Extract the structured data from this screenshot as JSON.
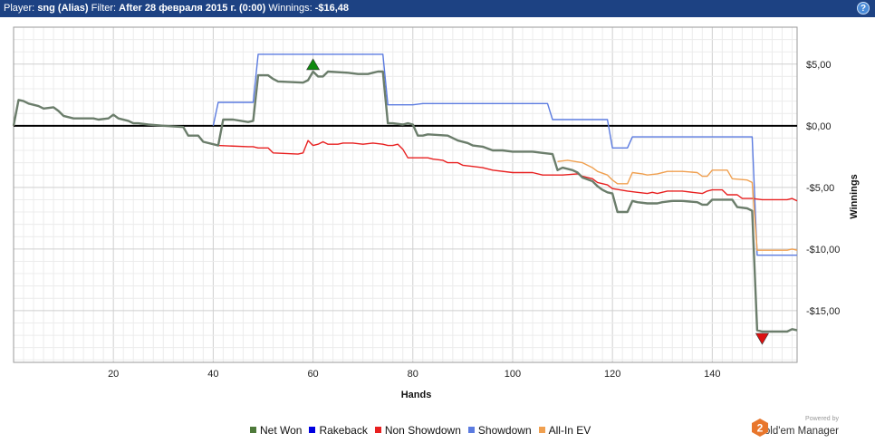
{
  "header": {
    "player_label": "Player:",
    "player_value": "sng (Alias)",
    "filter_label": "Filter:",
    "filter_value": "After 28 февраля 2015 г. (0:00)",
    "winnings_label": "Winnings:",
    "winnings_value": "-$16,48",
    "help_glyph": "?"
  },
  "chart_data": {
    "type": "line",
    "xlabel": "Hands",
    "ylabel": "Winnings",
    "xlim": [
      0,
      157
    ],
    "ylim": [
      -19.2,
      8.0
    ],
    "x_ticks": [
      20,
      40,
      60,
      80,
      100,
      120,
      140
    ],
    "y_ticks": [
      {
        "value": 5,
        "label": "$5,00"
      },
      {
        "value": 0,
        "label": "$0,00"
      },
      {
        "value": -5,
        "label": "-$5,00"
      },
      {
        "value": -10,
        "label": "-$10,00"
      },
      {
        "value": -15,
        "label": "-$15,00"
      }
    ],
    "grid": true,
    "legend_position": "bottom",
    "series": [
      {
        "name": "Net Won",
        "color": "#6b7d6b",
        "points": [
          [
            0,
            0
          ],
          [
            1,
            2.1
          ],
          [
            2,
            2.0
          ],
          [
            3,
            1.8
          ],
          [
            5,
            1.6
          ],
          [
            6,
            1.4
          ],
          [
            8,
            1.5
          ],
          [
            9,
            1.2
          ],
          [
            10,
            0.8
          ],
          [
            12,
            0.6
          ],
          [
            16,
            0.6
          ],
          [
            17,
            0.5
          ],
          [
            19,
            0.6
          ],
          [
            20,
            0.9
          ],
          [
            21,
            0.6
          ],
          [
            23,
            0.4
          ],
          [
            24,
            0.2
          ],
          [
            25,
            0.2
          ],
          [
            27,
            0.1
          ],
          [
            30,
            0.0
          ],
          [
            34,
            -0.1
          ],
          [
            35,
            -0.8
          ],
          [
            37,
            -0.8
          ],
          [
            38,
            -1.3
          ],
          [
            40,
            -1.5
          ],
          [
            41,
            -1.6
          ],
          [
            42,
            0.5
          ],
          [
            44,
            0.5
          ],
          [
            47,
            0.3
          ],
          [
            48,
            0.4
          ],
          [
            49,
            4.1
          ],
          [
            51,
            4.1
          ],
          [
            52,
            3.8
          ],
          [
            53,
            3.6
          ],
          [
            58,
            3.5
          ],
          [
            59,
            3.7
          ],
          [
            60,
            4.4
          ],
          [
            61,
            4.0
          ],
          [
            62,
            4.0
          ],
          [
            63,
            4.4
          ],
          [
            67,
            4.3
          ],
          [
            69,
            4.2
          ],
          [
            71,
            4.2
          ],
          [
            72,
            4.3
          ],
          [
            73,
            4.4
          ],
          [
            74,
            4.4
          ],
          [
            75,
            0.2
          ],
          [
            76,
            0.2
          ],
          [
            78,
            0.1
          ],
          [
            79,
            0.2
          ],
          [
            80,
            0.1
          ],
          [
            81,
            -0.8
          ],
          [
            82,
            -0.8
          ],
          [
            83,
            -0.7
          ],
          [
            87,
            -0.8
          ],
          [
            89,
            -1.2
          ],
          [
            91,
            -1.4
          ],
          [
            92,
            -1.6
          ],
          [
            94,
            -1.7
          ],
          [
            96,
            -2.0
          ],
          [
            98,
            -2.0
          ],
          [
            100,
            -2.1
          ],
          [
            102,
            -2.1
          ],
          [
            104,
            -2.1
          ],
          [
            106,
            -2.2
          ],
          [
            108,
            -2.3
          ],
          [
            109,
            -3.6
          ],
          [
            110,
            -3.4
          ],
          [
            111,
            -3.5
          ],
          [
            112,
            -3.6
          ],
          [
            113,
            -3.8
          ],
          [
            114,
            -4.2
          ],
          [
            116,
            -4.5
          ],
          [
            117,
            -4.9
          ],
          [
            118,
            -5.2
          ],
          [
            119,
            -5.4
          ],
          [
            120,
            -5.5
          ],
          [
            121,
            -7.0
          ],
          [
            123,
            -7.0
          ],
          [
            124,
            -6.1
          ],
          [
            125,
            -6.2
          ],
          [
            127,
            -6.3
          ],
          [
            129,
            -6.3
          ],
          [
            130,
            -6.2
          ],
          [
            132,
            -6.1
          ],
          [
            134,
            -6.1
          ],
          [
            137,
            -6.2
          ],
          [
            138,
            -6.4
          ],
          [
            139,
            -6.4
          ],
          [
            140,
            -6.0
          ],
          [
            141,
            -6.0
          ],
          [
            144,
            -6.0
          ],
          [
            145,
            -6.6
          ],
          [
            147,
            -6.7
          ],
          [
            148,
            -6.9
          ],
          [
            149,
            -16.6
          ],
          [
            150,
            -16.7
          ],
          [
            155,
            -16.7
          ],
          [
            156,
            -16.5
          ],
          [
            157,
            -16.6
          ]
        ]
      },
      {
        "name": "Rakeback",
        "color": "#0000e0",
        "points": []
      },
      {
        "name": "Non Showdown",
        "color": "#e82020",
        "points": [
          [
            0,
            0
          ],
          [
            1,
            2.1
          ],
          [
            2,
            2.0
          ],
          [
            3,
            1.8
          ],
          [
            5,
            1.6
          ],
          [
            6,
            1.4
          ],
          [
            8,
            1.5
          ],
          [
            9,
            1.2
          ],
          [
            10,
            0.8
          ],
          [
            12,
            0.6
          ],
          [
            16,
            0.6
          ],
          [
            17,
            0.5
          ],
          [
            19,
            0.6
          ],
          [
            20,
            0.9
          ],
          [
            21,
            0.6
          ],
          [
            23,
            0.4
          ],
          [
            24,
            0.2
          ],
          [
            25,
            0.2
          ],
          [
            27,
            0.1
          ],
          [
            30,
            0.0
          ],
          [
            34,
            -0.1
          ],
          [
            35,
            -0.8
          ],
          [
            37,
            -0.8
          ],
          [
            38,
            -1.3
          ],
          [
            40,
            -1.5
          ],
          [
            41,
            -1.6
          ],
          [
            47,
            -1.7
          ],
          [
            48,
            -1.7
          ],
          [
            49,
            -1.8
          ],
          [
            51,
            -1.8
          ],
          [
            52,
            -2.2
          ],
          [
            57,
            -2.3
          ],
          [
            58,
            -2.2
          ],
          [
            59,
            -1.2
          ],
          [
            60,
            -1.6
          ],
          [
            61,
            -1.5
          ],
          [
            62,
            -1.3
          ],
          [
            63,
            -1.5
          ],
          [
            65,
            -1.5
          ],
          [
            66,
            -1.4
          ],
          [
            68,
            -1.4
          ],
          [
            70,
            -1.5
          ],
          [
            72,
            -1.4
          ],
          [
            74,
            -1.5
          ],
          [
            75,
            -1.6
          ],
          [
            76,
            -1.6
          ],
          [
            77,
            -1.5
          ],
          [
            78,
            -1.9
          ],
          [
            79,
            -2.6
          ],
          [
            83,
            -2.6
          ],
          [
            84,
            -2.7
          ],
          [
            86,
            -2.8
          ],
          [
            87,
            -3.0
          ],
          [
            89,
            -3.0
          ],
          [
            90,
            -3.2
          ],
          [
            92,
            -3.3
          ],
          [
            94,
            -3.4
          ],
          [
            96,
            -3.6
          ],
          [
            100,
            -3.8
          ],
          [
            104,
            -3.8
          ],
          [
            106,
            -4.0
          ],
          [
            110,
            -4.0
          ],
          [
            113,
            -3.9
          ],
          [
            114,
            -4.1
          ],
          [
            116,
            -4.3
          ],
          [
            117,
            -4.6
          ],
          [
            119,
            -4.8
          ],
          [
            120,
            -5.1
          ],
          [
            123,
            -5.3
          ],
          [
            125,
            -5.4
          ],
          [
            127,
            -5.5
          ],
          [
            128,
            -5.4
          ],
          [
            129,
            -5.5
          ],
          [
            131,
            -5.3
          ],
          [
            134,
            -5.3
          ],
          [
            136,
            -5.4
          ],
          [
            138,
            -5.5
          ],
          [
            139,
            -5.3
          ],
          [
            140,
            -5.2
          ],
          [
            142,
            -5.2
          ],
          [
            143,
            -5.6
          ],
          [
            145,
            -5.6
          ],
          [
            146,
            -5.9
          ],
          [
            148,
            -5.9
          ],
          [
            150,
            -6.0
          ],
          [
            155,
            -6.0
          ],
          [
            156,
            -5.9
          ],
          [
            157,
            -6.1
          ]
        ]
      },
      {
        "name": "Showdown",
        "color": "#5b7be0",
        "points": [
          [
            40,
            0
          ],
          [
            41,
            1.9
          ],
          [
            48,
            1.9
          ],
          [
            49,
            5.8
          ],
          [
            74,
            5.8
          ],
          [
            75,
            1.7
          ],
          [
            80,
            1.7
          ],
          [
            82,
            1.8
          ],
          [
            107,
            1.8
          ],
          [
            108,
            0.5
          ],
          [
            119,
            0.5
          ],
          [
            120,
            -1.8
          ],
          [
            123,
            -1.8
          ],
          [
            124,
            -0.9
          ],
          [
            148,
            -0.9
          ],
          [
            149,
            -10.5
          ],
          [
            157,
            -10.5
          ]
        ]
      },
      {
        "name": "All-In EV",
        "color": "#f0a050",
        "points": [
          [
            109,
            -2.9
          ],
          [
            111,
            -2.8
          ],
          [
            114,
            -3.0
          ],
          [
            116,
            -3.4
          ],
          [
            117,
            -3.7
          ],
          [
            119,
            -4.0
          ],
          [
            120,
            -4.4
          ],
          [
            121,
            -4.7
          ],
          [
            123,
            -4.7
          ],
          [
            124,
            -3.8
          ],
          [
            126,
            -3.9
          ],
          [
            127,
            -4.0
          ],
          [
            129,
            -3.9
          ],
          [
            131,
            -3.7
          ],
          [
            134,
            -3.7
          ],
          [
            137,
            -3.8
          ],
          [
            138,
            -4.1
          ],
          [
            139,
            -4.1
          ],
          [
            140,
            -3.6
          ],
          [
            143,
            -3.6
          ],
          [
            144,
            -4.3
          ],
          [
            147,
            -4.4
          ],
          [
            148,
            -4.6
          ],
          [
            149,
            -10.1
          ],
          [
            155,
            -10.1
          ],
          [
            156,
            -10.0
          ],
          [
            157,
            -10.1
          ]
        ]
      }
    ],
    "markers": [
      {
        "type": "max",
        "x": 60,
        "y": 4.4,
        "color": "#0f8a0f"
      },
      {
        "type": "min",
        "x": 150,
        "y": -16.7,
        "color": "#dd1111"
      }
    ],
    "zero_line": true
  },
  "branding": {
    "powered_by": "Powered by",
    "product_name": "Hold'em Manager",
    "logo_digit": "2"
  }
}
